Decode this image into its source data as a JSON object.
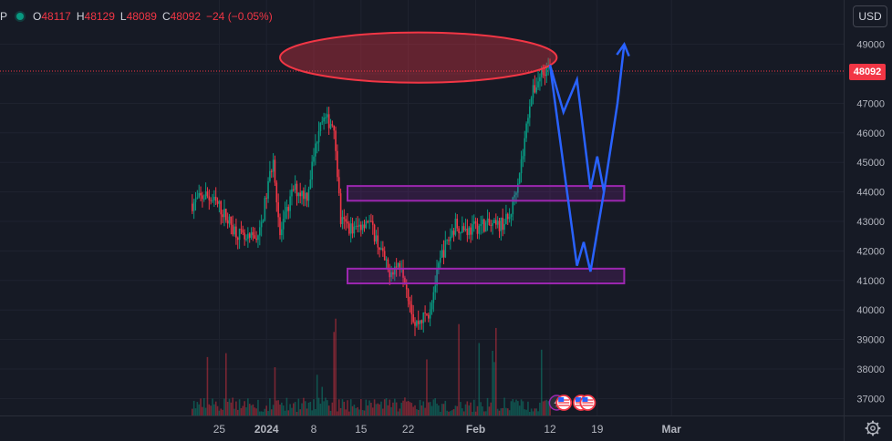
{
  "header": {
    "symbol_fragment": "P",
    "open_label": "O",
    "open": "48117",
    "high_label": "H",
    "high": "48129",
    "low_label": "L",
    "low": "48089",
    "close_label": "C",
    "close": "48092",
    "change": "−24 (−0.05%)",
    "status_color": "#089981"
  },
  "currency_button": "USD",
  "current_price": "48092",
  "colors": {
    "background": "#161a25",
    "up": "#089981",
    "down": "#f23645",
    "annotation_ellipse": "#f23645",
    "annotation_zone": "#9c27b0",
    "projection": "#2962ff",
    "axis_text": "#b2b5be"
  },
  "chart_data": {
    "type": "candlestick",
    "y_ticks": [
      37000,
      38000,
      39000,
      40000,
      41000,
      42000,
      43000,
      44000,
      45000,
      46000,
      47000,
      48000,
      49000
    ],
    "y_tick_labels": [
      "37000",
      "38000",
      "39000",
      "40000",
      "41000",
      "42000",
      "43000",
      "44000",
      "45000",
      "46000",
      "47000",
      "48000",
      "49000"
    ],
    "ylim": [
      36500,
      50300
    ],
    "x_tick_labels": [
      "25",
      "2024",
      "8",
      "15",
      "22",
      "Feb",
      "12",
      "19",
      "Mar"
    ],
    "x_tick_dates": [
      "2023-12-25",
      "2024-01-01",
      "2024-01-08",
      "2024-01-15",
      "2024-01-22",
      "2024-02-01",
      "2024-02-12",
      "2024-02-19",
      "2024-03-01"
    ],
    "last_price": 48092,
    "price_path": [
      [
        "2023-12-21",
        43600
      ],
      [
        "2023-12-23",
        43900
      ],
      [
        "2023-12-25",
        43500
      ],
      [
        "2023-12-27",
        42800
      ],
      [
        "2023-12-29",
        42300
      ],
      [
        "2023-12-31",
        42600
      ],
      [
        "2024-01-02",
        45200
      ],
      [
        "2024-01-03",
        42500
      ],
      [
        "2024-01-05",
        44100
      ],
      [
        "2024-01-07",
        43900
      ],
      [
        "2024-01-09",
        46500
      ],
      [
        "2024-01-11",
        46300
      ],
      [
        "2024-01-12",
        43000
      ],
      [
        "2024-01-14",
        42700
      ],
      [
        "2024-01-16",
        43100
      ],
      [
        "2024-01-18",
        42000
      ],
      [
        "2024-01-19",
        41300
      ],
      [
        "2024-01-21",
        41600
      ],
      [
        "2024-01-23",
        39500
      ],
      [
        "2024-01-25",
        39900
      ],
      [
        "2024-01-27",
        41900
      ],
      [
        "2024-01-29",
        42900
      ],
      [
        "2024-01-31",
        42700
      ],
      [
        "2024-02-02",
        42900
      ],
      [
        "2024-02-04",
        42800
      ],
      [
        "2024-02-06",
        43100
      ],
      [
        "2024-02-08",
        45300
      ],
      [
        "2024-02-09",
        47100
      ],
      [
        "2024-02-11",
        48200
      ],
      [
        "2024-02-12",
        48092
      ]
    ],
    "annotations": {
      "resistance_ellipse": {
        "center_date": "2024-02-01",
        "price": 48550,
        "low": 47700,
        "high": 49400,
        "from": "2024-01-03",
        "to": "2024-02-13"
      },
      "zone_upper": {
        "low": 43700,
        "high": 44200,
        "from": "2024-01-13",
        "to": "2024-02-23"
      },
      "zone_lower": {
        "low": 40900,
        "high": 41400,
        "from": "2024-01-13",
        "to": "2024-02-23"
      },
      "projection_a": [
        [
          "2024-02-12",
          48300
        ],
        [
          "2024-02-14",
          46700
        ],
        [
          "2024-02-16",
          47800
        ],
        [
          "2024-02-18",
          44100
        ],
        [
          "2024-02-19",
          45200
        ],
        [
          "2024-02-20",
          44000
        ]
      ],
      "projection_b": [
        [
          "2024-02-12",
          48300
        ],
        [
          "2024-02-16",
          41500
        ],
        [
          "2024-02-17",
          42300
        ],
        [
          "2024-02-18",
          41300
        ],
        [
          "2024-02-20",
          44000
        ],
        [
          "2024-02-22",
          47000
        ],
        [
          "2024-02-23",
          49000
        ]
      ]
    },
    "event_markers": [
      "lightning-icon",
      "us-flag-icon",
      "us-flag-icon",
      "us-flag-icon"
    ]
  }
}
